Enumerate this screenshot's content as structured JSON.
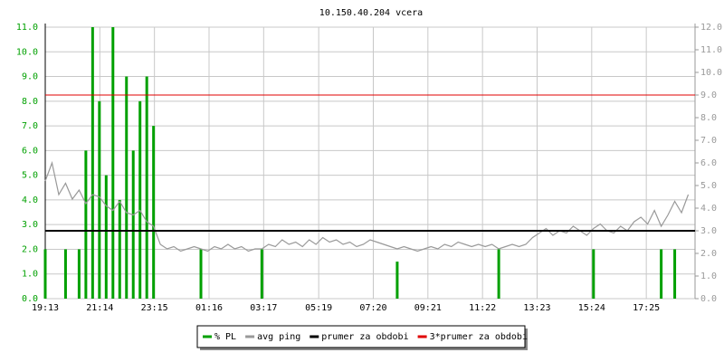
{
  "chart_data": {
    "type": "line",
    "title": "10.150.40.204 vcera",
    "xlim": [
      0,
      1440
    ],
    "xticks": [
      {
        "value": 0,
        "label": "19:13"
      },
      {
        "value": 121,
        "label": "21:14"
      },
      {
        "value": 242,
        "label": "23:15"
      },
      {
        "value": 363,
        "label": "01:16"
      },
      {
        "value": 484,
        "label": "03:17"
      },
      {
        "value": 606,
        "label": "05:19"
      },
      {
        "value": 727,
        "label": "07:20"
      },
      {
        "value": 848,
        "label": "09:21"
      },
      {
        "value": 969,
        "label": "11:22"
      },
      {
        "value": 1090,
        "label": "13:23"
      },
      {
        "value": 1211,
        "label": "15:24"
      },
      {
        "value": 1332,
        "label": "17:25"
      }
    ],
    "ylim": [
      0,
      11
    ],
    "yticks": [
      {
        "value": 0,
        "label": "0.0"
      },
      {
        "value": 1,
        "label": "1.0"
      },
      {
        "value": 2,
        "label": "2.0"
      },
      {
        "value": 3,
        "label": "3.0"
      },
      {
        "value": 4,
        "label": "4.0"
      },
      {
        "value": 5,
        "label": "5.0"
      },
      {
        "value": 6,
        "label": "6.0"
      },
      {
        "value": 7,
        "label": "7.0"
      },
      {
        "value": 8,
        "label": "8.0"
      },
      {
        "value": 9,
        "label": "9.0"
      },
      {
        "value": 10,
        "label": "10.0"
      },
      {
        "value": 11,
        "label": "11.0"
      }
    ],
    "y2lim": [
      0,
      12
    ],
    "y2ticks": [
      {
        "value": 0,
        "label": "0.0"
      },
      {
        "value": 1,
        "label": "1.0"
      },
      {
        "value": 2,
        "label": "2.0"
      },
      {
        "value": 3,
        "label": "3.0"
      },
      {
        "value": 4,
        "label": "4.0"
      },
      {
        "value": 5,
        "label": "5.0"
      },
      {
        "value": 6,
        "label": "6.0"
      },
      {
        "value": 7,
        "label": "7.0"
      },
      {
        "value": 8,
        "label": "8.0"
      },
      {
        "value": 9,
        "label": "9.0"
      },
      {
        "value": 10,
        "label": "10.0"
      },
      {
        "value": 11,
        "label": "11.0"
      },
      {
        "value": 12,
        "label": "12.0"
      }
    ],
    "grid": true,
    "x": [
      0,
      15,
      30,
      45,
      60,
      75,
      90,
      105,
      120,
      135,
      150,
      165,
      180,
      195,
      210,
      225,
      240,
      255,
      270,
      285,
      300,
      315,
      330,
      345,
      360,
      375,
      390,
      405,
      420,
      435,
      450,
      465,
      480,
      495,
      510,
      525,
      540,
      555,
      570,
      585,
      600,
      615,
      630,
      645,
      660,
      675,
      690,
      705,
      720,
      735,
      750,
      765,
      780,
      795,
      810,
      825,
      840,
      855,
      870,
      885,
      900,
      915,
      930,
      945,
      960,
      975,
      990,
      1005,
      1020,
      1035,
      1050,
      1065,
      1080,
      1095,
      1110,
      1125,
      1140,
      1155,
      1170,
      1185,
      1200,
      1215,
      1230,
      1245,
      1260,
      1275,
      1290,
      1305,
      1320,
      1335,
      1350,
      1365,
      1380,
      1395,
      1410,
      1425
    ],
    "series": [
      {
        "name": "% PL",
        "color": "#00a000",
        "kind": "impulse",
        "values": [
          2,
          0,
          0,
          2,
          0,
          2,
          6,
          11,
          8,
          5,
          11,
          4,
          9,
          6,
          8,
          9,
          7,
          0,
          0,
          0,
          0,
          0,
          0,
          2,
          0,
          0,
          0,
          0,
          0,
          0,
          0,
          0,
          2,
          0,
          0,
          0,
          0,
          0,
          0,
          0,
          0,
          0,
          0,
          0,
          0,
          0,
          0,
          0,
          0,
          0,
          0,
          0,
          1.5,
          0,
          0,
          0,
          0,
          0,
          0,
          0,
          0,
          0,
          0,
          0,
          0,
          0,
          0,
          2,
          0,
          0,
          0,
          0,
          0,
          0,
          0,
          0,
          0,
          0,
          0,
          0,
          0,
          2,
          0,
          0,
          0,
          0,
          0,
          0,
          0,
          0,
          0,
          2,
          0,
          2,
          0,
          0
        ]
      },
      {
        "name": "avg ping",
        "color": "#999999",
        "kind": "line",
        "axis": "y2",
        "values": [
          5.2,
          6.0,
          4.6,
          5.1,
          4.4,
          4.8,
          4.2,
          4.6,
          4.5,
          4.1,
          3.9,
          4.3,
          3.8,
          3.7,
          3.9,
          3.4,
          3.2,
          2.4,
          2.2,
          2.3,
          2.1,
          2.2,
          2.3,
          2.2,
          2.1,
          2.3,
          2.2,
          2.4,
          2.2,
          2.3,
          2.1,
          2.2,
          2.2,
          2.4,
          2.3,
          2.6,
          2.4,
          2.5,
          2.3,
          2.6,
          2.4,
          2.7,
          2.5,
          2.6,
          2.4,
          2.5,
          2.3,
          2.4,
          2.6,
          2.5,
          2.4,
          2.3,
          2.2,
          2.3,
          2.2,
          2.1,
          2.2,
          2.3,
          2.2,
          2.4,
          2.3,
          2.5,
          2.4,
          2.3,
          2.4,
          2.3,
          2.4,
          2.2,
          2.3,
          2.4,
          2.3,
          2.4,
          2.7,
          2.9,
          3.1,
          2.8,
          3.0,
          2.9,
          3.2,
          3.0,
          2.8,
          3.1,
          3.3,
          3.0,
          2.9,
          3.2,
          3.0,
          3.4,
          3.6,
          3.3,
          3.9,
          3.2,
          3.7,
          4.3,
          3.8,
          4.6
        ]
      },
      {
        "name": "prumer za obdobi",
        "color": "#000000",
        "kind": "level",
        "axis": "y2",
        "value": 3.0
      },
      {
        "name": "3*prumer za obdobi",
        "color": "#e00000",
        "kind": "level",
        "axis": "y2",
        "value": 9.0
      }
    ]
  }
}
